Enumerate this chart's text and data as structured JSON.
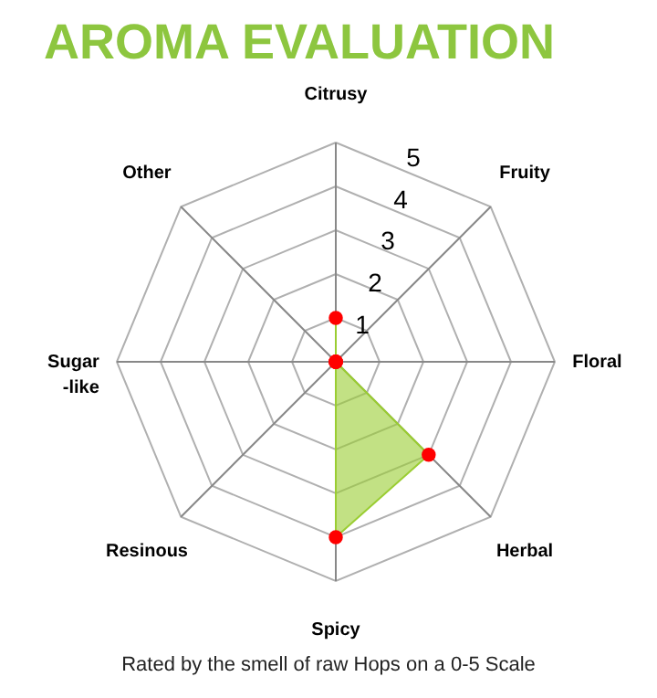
{
  "chart_data": {
    "type": "radar",
    "title": "AROMA EVALUATION",
    "categories": [
      "Citrusy",
      "Fruity",
      "Floral",
      "Herbal",
      "Spicy",
      "Resinous",
      "Sugar\n-like",
      "Other"
    ],
    "series": [
      {
        "color": "#9acd32",
        "values": [
          1,
          0,
          0,
          3,
          4,
          0,
          0,
          0
        ]
      }
    ],
    "ylim": [
      0,
      5
    ],
    "yticks": [
      1,
      2,
      3,
      4,
      5
    ],
    "grid": true,
    "marker": "circle",
    "annotations": [
      "Rated by the smell of raw Hops on a 0-5 Scale"
    ]
  }
}
